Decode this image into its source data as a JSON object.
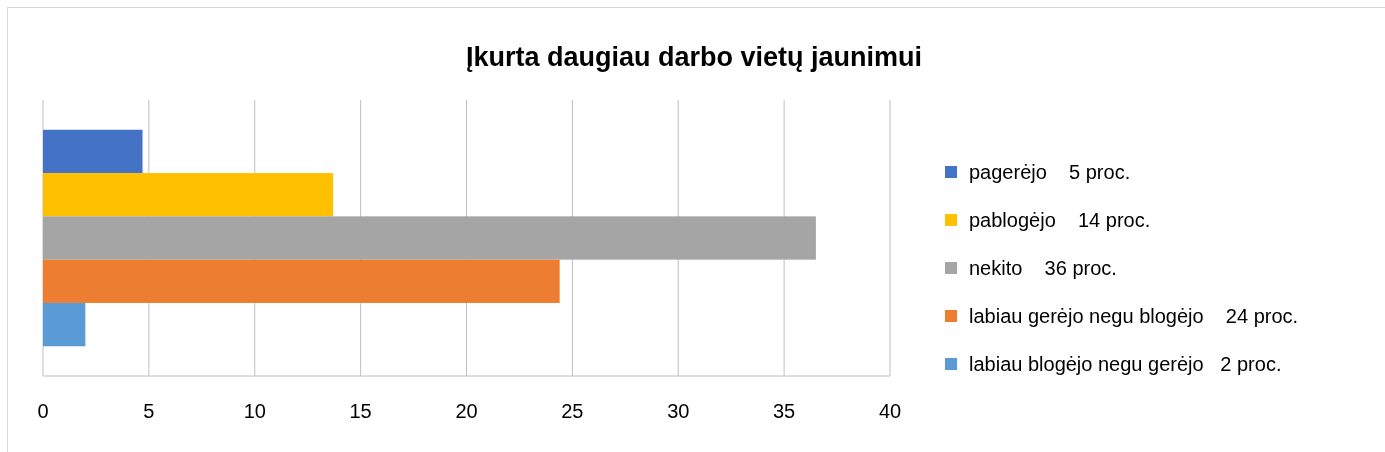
{
  "chart_data": {
    "type": "bar",
    "orientation": "horizontal",
    "title": "Įkurta daugiau darbo vietų jaunimui",
    "categories": [
      null
    ],
    "series": [
      {
        "name": "pagerėjo    5 proc.",
        "color": "#4472c4",
        "values": [
          4.7
        ]
      },
      {
        "name": "pablogėjo    14 proc.",
        "color": "#ffc000",
        "values": [
          13.7
        ]
      },
      {
        "name": "nekito    36 proc.",
        "color": "#a5a5a5",
        "values": [
          36.5
        ]
      },
      {
        "name": "labiau gerėjo negu blogėjo    24 proc.",
        "color": "#ed7d31",
        "values": [
          24.4
        ]
      },
      {
        "name": "labiau blogėjo negu gerėjo   2 proc.",
        "color": "#5b9bd5",
        "values": [
          2.0
        ]
      }
    ],
    "xlim": [
      0,
      40
    ],
    "xticks": [
      0,
      5,
      10,
      15,
      20,
      25,
      30,
      35,
      40
    ],
    "grid": "x",
    "legend": "right"
  }
}
